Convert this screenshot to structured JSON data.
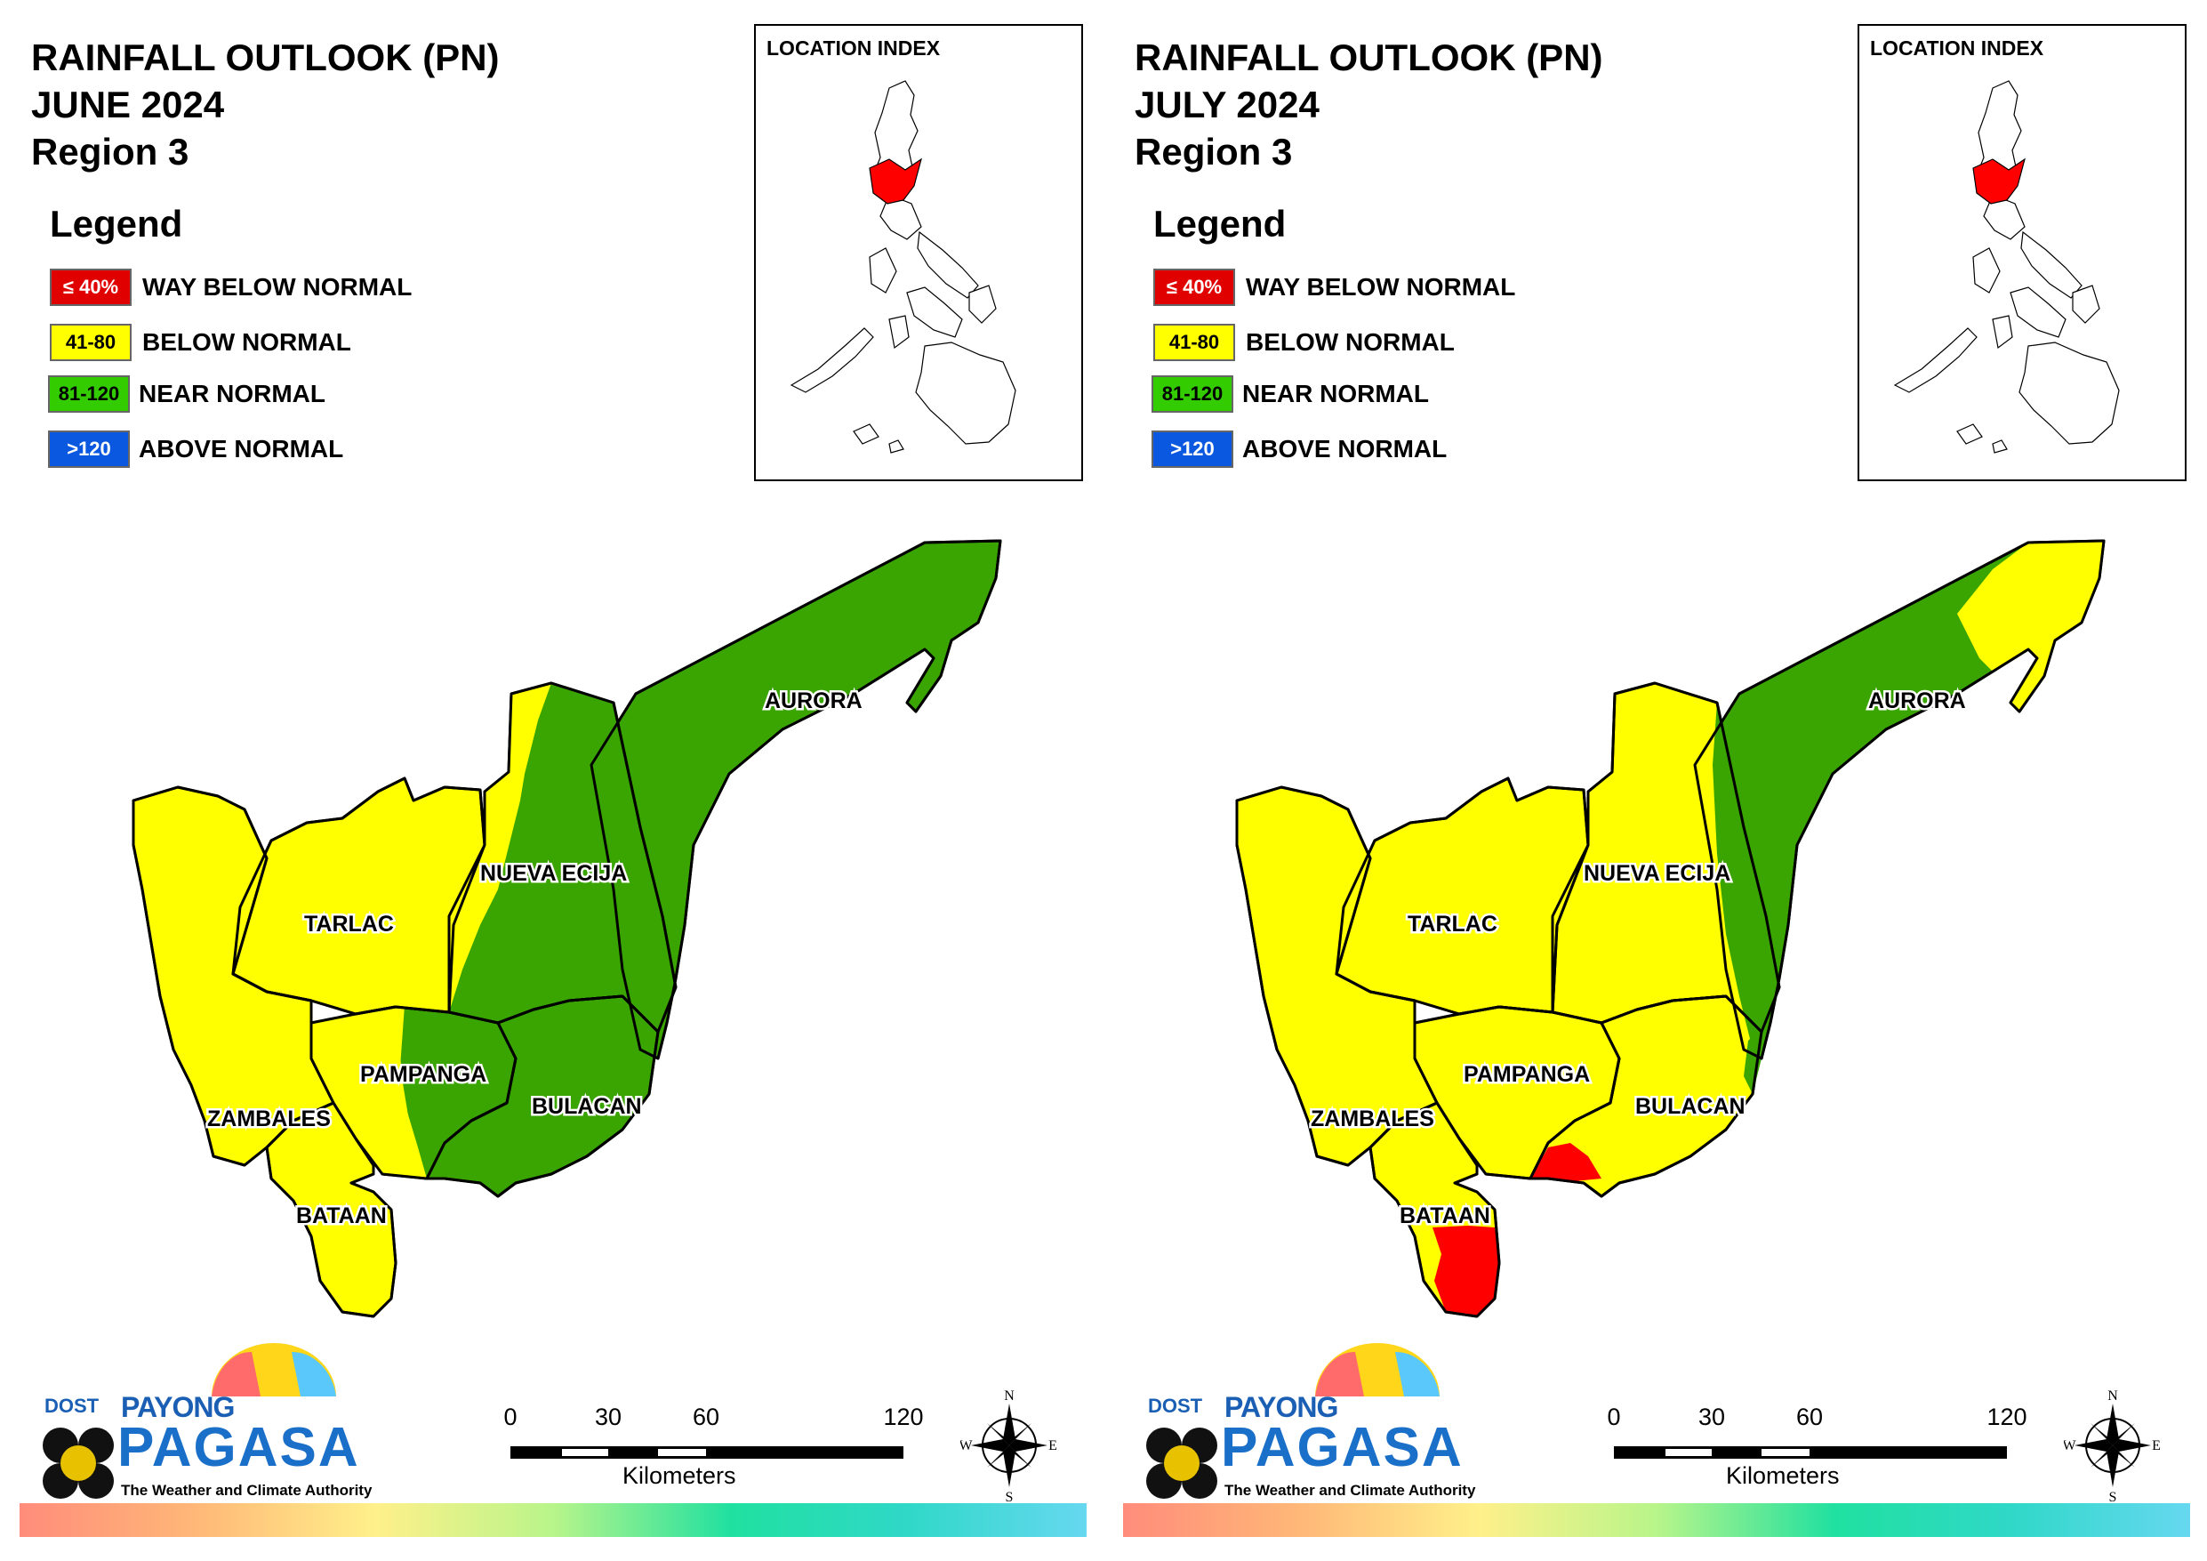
{
  "panels": [
    {
      "title": [
        "RAINFALL OUTLOOK (PN)",
        "JUNE 2024",
        "Region 3"
      ],
      "legend_title": "Legend",
      "legend": [
        {
          "code": "≤ 40%",
          "label": "WAY BELOW NORMAL",
          "color": "#e00000",
          "text_color": "#ffffff"
        },
        {
          "code": "41-80",
          "label": "BELOW NORMAL",
          "color": "#ffff00",
          "text_color": "#000000"
        },
        {
          "code": "81-120",
          "label": "NEAR NORMAL",
          "color": "#33cc00",
          "text_color": "#000000"
        },
        {
          "code": ">120",
          "label": "ABOVE NORMAL",
          "color": "#0a58e0",
          "text_color": "#ffffff"
        }
      ],
      "inset_title": "LOCATION INDEX",
      "provinces": {
        "aurora": "AURORA",
        "nueva_ecija": "NUEVA ECIJA",
        "tarlac": "TARLAC",
        "pampanga": "PAMPANGA",
        "zambales": "ZAMBALES",
        "bulacan": "BULACAN",
        "bataan": "BATAAN"
      }
    },
    {
      "title": [
        "RAINFALL OUTLOOK (PN)",
        "JULY 2024",
        "Region 3"
      ],
      "legend_title": "Legend",
      "legend": [
        {
          "code": "≤ 40%",
          "label": "WAY BELOW NORMAL",
          "color": "#e00000",
          "text_color": "#ffffff"
        },
        {
          "code": "41-80",
          "label": "BELOW NORMAL",
          "color": "#ffff00",
          "text_color": "#000000"
        },
        {
          "code": "81-120",
          "label": "NEAR NORMAL",
          "color": "#33cc00",
          "text_color": "#000000"
        },
        {
          "code": ">120",
          "label": "ABOVE NORMAL",
          "color": "#0a58e0",
          "text_color": "#ffffff"
        }
      ],
      "inset_title": "LOCATION INDEX",
      "provinces": {
        "aurora": "AURORA",
        "nueva_ecija": "NUEVA ECIJA",
        "tarlac": "TARLAC",
        "pampanga": "PAMPANGA",
        "zambales": "ZAMBALES",
        "bulacan": "BULACAN",
        "bataan": "BATAAN"
      }
    }
  ],
  "scale": {
    "ticks": [
      "0",
      "30",
      "60",
      "120"
    ],
    "unit": "Kilometers"
  },
  "compass": {
    "n": "N",
    "s": "S",
    "e": "E",
    "w": "W"
  },
  "logo": {
    "dost": "DOST",
    "payong": "PAYONG",
    "pagasa": "PAGASA",
    "tagline": "The Weather and Climate Authority"
  },
  "colors": {
    "yellow": "#ffff00",
    "green": "#3aa500",
    "red": "#ff0000"
  }
}
